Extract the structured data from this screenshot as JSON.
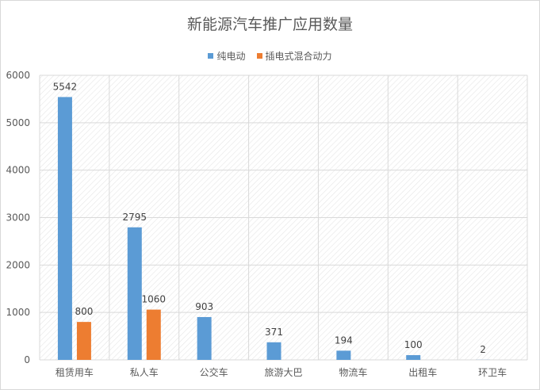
{
  "chart_data": {
    "type": "bar",
    "title": "新能源汽车推广应用数量",
    "categories": [
      "租赁用车",
      "私人车",
      "公交车",
      "旅游大巴",
      "物流车",
      "出租车",
      "环卫车"
    ],
    "series": [
      {
        "name": "纯电动",
        "color": "#5b9bd5",
        "values": [
          5542,
          2795,
          903,
          371,
          194,
          100,
          2
        ]
      },
      {
        "name": "插电式混合动力",
        "color": "#ed7d31",
        "values": [
          800,
          1060,
          null,
          null,
          null,
          null,
          null
        ]
      }
    ],
    "ylim": [
      0,
      6000
    ],
    "yticks": [
      0,
      1000,
      2000,
      3000,
      4000,
      5000,
      6000
    ],
    "xlabel": "",
    "ylabel": "",
    "grid": true,
    "legend": "top-center",
    "plot_background": "diagonal-hatch"
  }
}
